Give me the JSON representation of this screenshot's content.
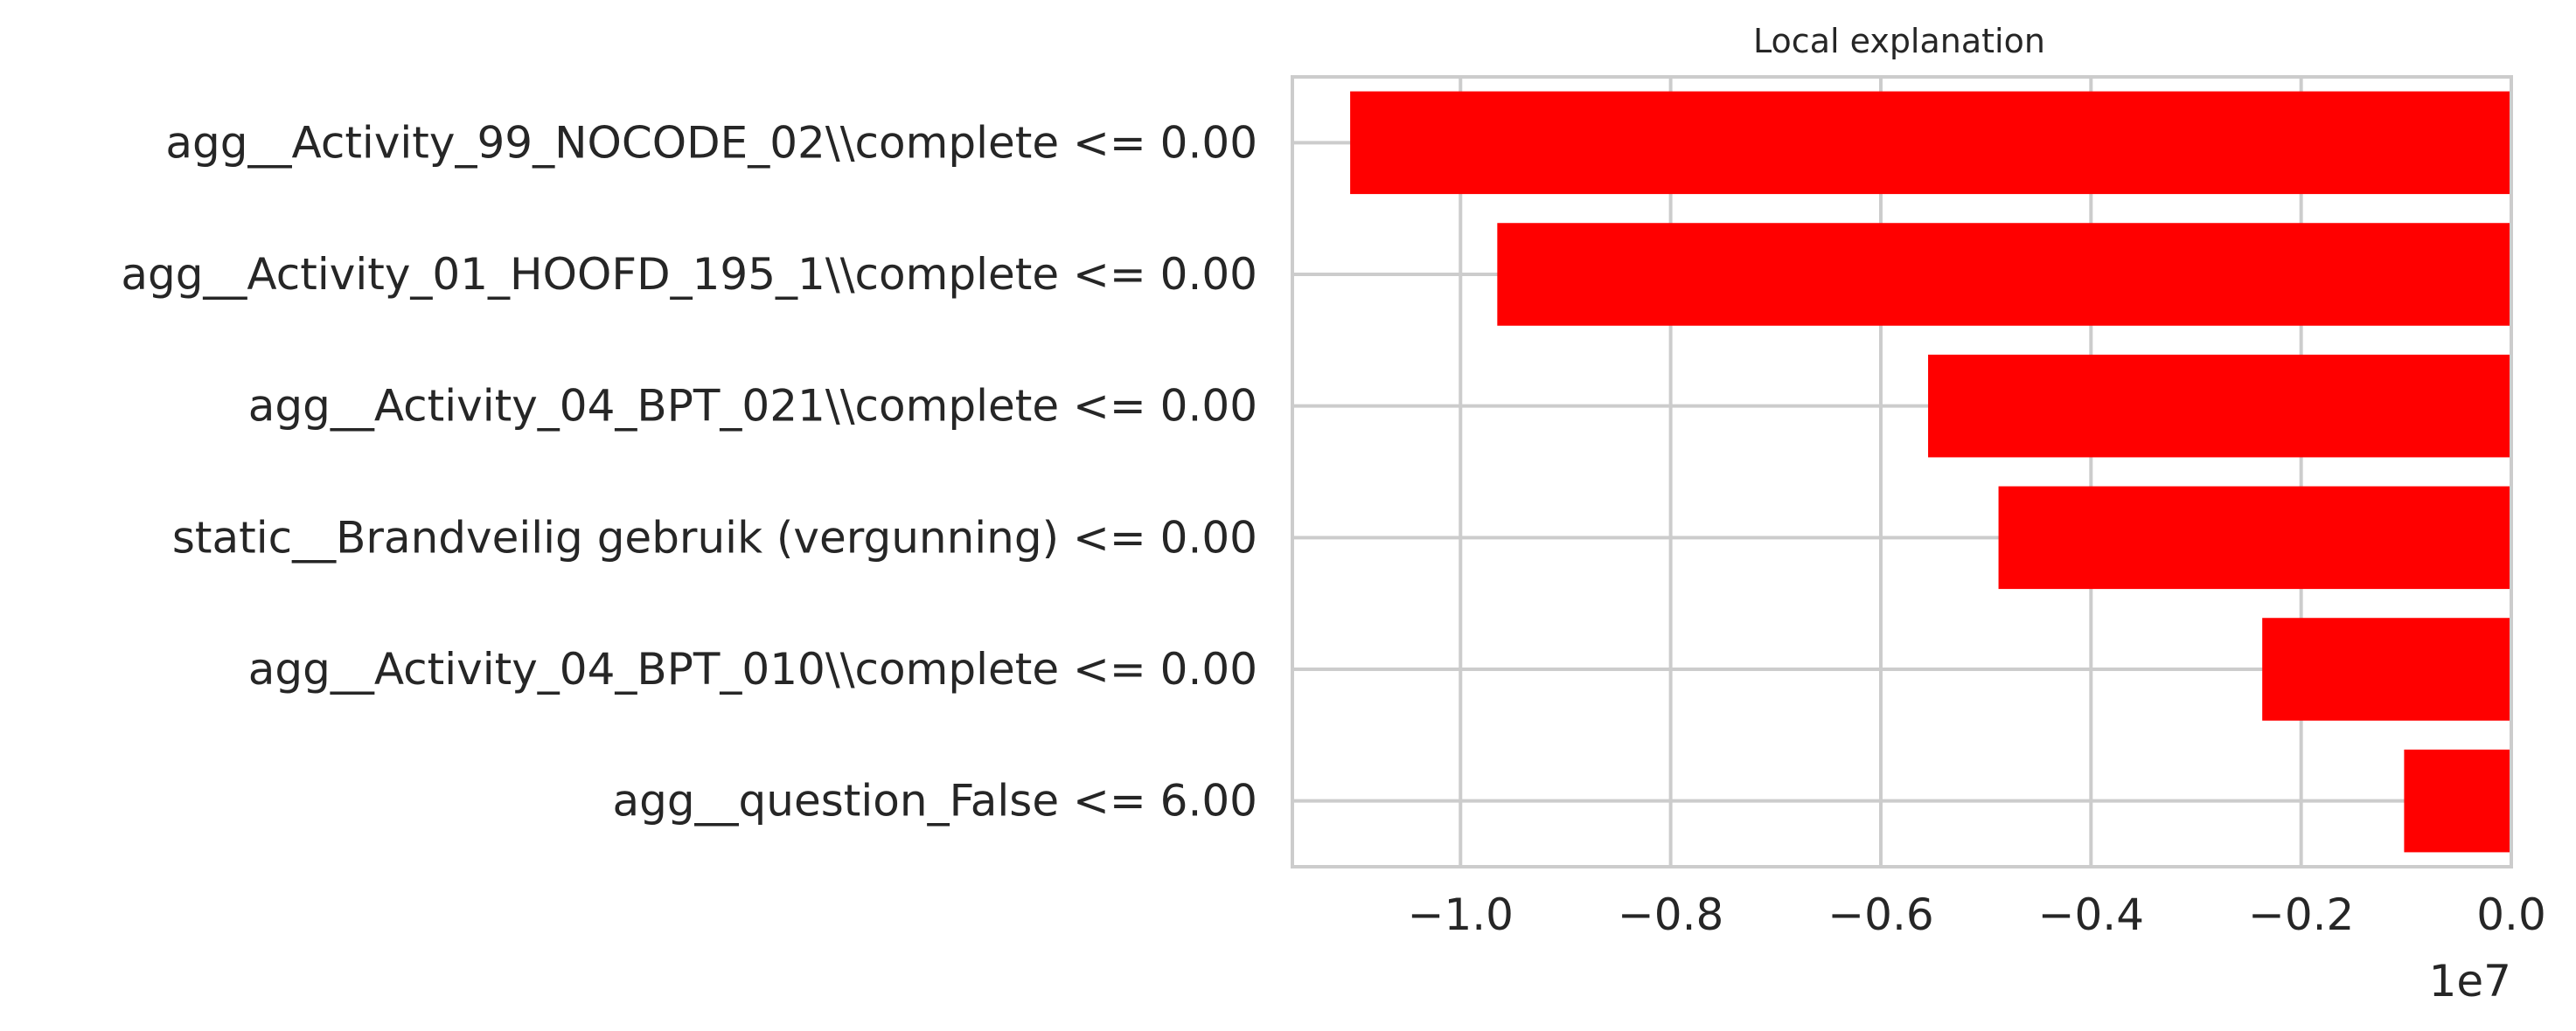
{
  "chart_data": {
    "type": "bar",
    "orientation": "horizontal",
    "title": "Local explanation",
    "xlabel": "",
    "ylabel": "",
    "x_offset_label": "1e7",
    "categories": [
      "agg__Activity_99_NOCODE_02\\\\complete <= 0.00",
      "agg__Activity_01_HOOFD_195_1\\\\complete <= 0.00",
      "agg__Activity_04_BPT_021\\\\complete <= 0.00",
      "static__Brandveilig gebruik (vergunning) <= 0.00",
      "agg__Activity_04_BPT_010\\\\complete <= 0.00",
      "agg__question_False <= 6.00"
    ],
    "values": [
      -11050000,
      -9650000,
      -5550000,
      -4880000,
      -2370000,
      -1020000
    ],
    "xlim": [
      -11600000,
      0
    ],
    "xticks": [
      -10000000,
      -8000000,
      -6000000,
      -4000000,
      -2000000,
      0
    ],
    "xtick_labels": [
      "−1.0",
      "−0.8",
      "−0.6",
      "−0.4",
      "−0.2",
      "0.0"
    ],
    "grid": true,
    "colors": {
      "bar": "#ff0000",
      "grid": "#cccccc",
      "frame": "#cccccc",
      "text": "#262626"
    }
  }
}
